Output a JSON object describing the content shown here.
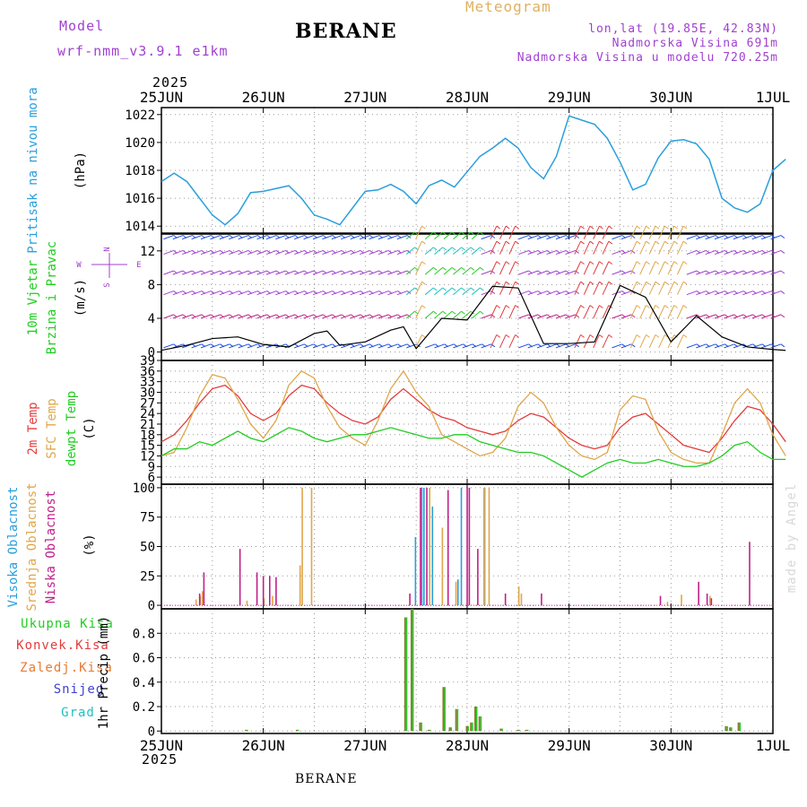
{
  "header": {
    "model_label": "Model",
    "model_name": "wrf-nmm_v3.9.1 e1km",
    "title": "BERANE",
    "meteogram_label": "Meteogram",
    "location": "lon,lat (19.85E, 42.83N)",
    "elevation": "Nadmorska Visina 691m",
    "model_elevation": "Nadmorska Visina u modelu 720.25m",
    "year_top": "2025"
  },
  "footer": {
    "year": "2025",
    "station": "BERANE",
    "credit": "made by Angel"
  },
  "colors": {
    "pressure": "#2a9fdc",
    "red": "#e33c3c",
    "orange": "#e0a64a",
    "green": "#22cc22",
    "purple": "#a040d0",
    "magenta": "#c0208a",
    "blue": "#2050e0",
    "cyan": "#20c0c0",
    "olive": "#8a7a30"
  },
  "xaxis": {
    "dates": [
      "25JUN",
      "26JUN",
      "27JUN",
      "28JUN",
      "29JUN",
      "30JUN",
      "1JUL"
    ]
  },
  "panel_labels": {
    "pressure": {
      "name": "Pritisak na nivou mora",
      "unit": "(hPa)"
    },
    "wind": {
      "name1": "10m Vjetar",
      "name2": "Brzina i Pravac",
      "unit": "(m/s)",
      "compass_top": "N",
      "compass_w": "W",
      "compass_e": "E",
      "compass_s": "S"
    },
    "temp": {
      "name1": "2m Temp",
      "name2": "SFC Temp",
      "name3": "dewpt Temp",
      "unit": "(C)"
    },
    "cloud": {
      "name1": "Visoka Oblacnost",
      "name2": "Srednja Oblacnost",
      "name3": "Niska Oblacnost",
      "unit": "(%)"
    },
    "precip": {
      "total": "Ukupna Kisa",
      "conv": "Konvek.Kisa",
      "frozen": "Zaledj.Kisa",
      "snow": "Snijeg",
      "hail": "Grad",
      "unit": "1hr Precip (mm)"
    }
  },
  "chart_data": [
    {
      "type": "line",
      "title": "Pritisak na nivou mora",
      "ylabel": "(hPa)",
      "x": [
        0,
        3,
        6,
        9,
        12,
        15,
        18,
        21,
        24,
        27,
        30,
        33,
        36,
        39,
        42,
        45,
        48,
        51,
        54,
        57,
        60,
        63,
        66,
        69,
        72,
        75,
        78,
        81,
        84,
        87,
        90,
        93,
        96,
        99,
        102,
        105,
        108,
        111,
        114,
        117,
        120,
        123,
        126,
        129,
        132,
        135,
        138,
        141,
        144,
        147
      ],
      "y": [
        1017.2,
        1017.8,
        1017.2,
        1016.0,
        1014.8,
        1014.1,
        1014.9,
        1016.4,
        1016.5,
        1016.7,
        1016.9,
        1016.0,
        1014.8,
        1014.5,
        1014.1,
        1015.3,
        1016.5,
        1016.6,
        1017.0,
        1016.5,
        1015.6,
        1016.9,
        1017.3,
        1016.8,
        1017.9,
        1019.0,
        1019.6,
        1020.3,
        1019.6,
        1018.2,
        1017.4,
        1019.0,
        1021.9,
        1021.6,
        1021.3,
        1020.3,
        1018.6,
        1016.6,
        1017.0,
        1018.9,
        1020.1,
        1020.2,
        1019.9,
        1018.8,
        1016.0,
        1015.3,
        1015.0,
        1015.6,
        1018.0,
        1018.8
      ],
      "yticks": [
        1014,
        1016,
        1018,
        1020,
        1022
      ],
      "ylim": [
        1013.5,
        1022.5
      ]
    },
    {
      "type": "line",
      "title": "10m Vjetar Brzina i Pravac",
      "ylabel": "(m/s)",
      "x": [
        0,
        6,
        12,
        18,
        24,
        30,
        36,
        39,
        42,
        48,
        54,
        57,
        60,
        66,
        72,
        78,
        84,
        90,
        96,
        102,
        108,
        114,
        120,
        126,
        132,
        138,
        144,
        147
      ],
      "y": [
        0.2,
        0.8,
        1.6,
        1.8,
        0.9,
        0.6,
        2.2,
        2.5,
        0.8,
        1.2,
        2.6,
        3.0,
        0.4,
        4.0,
        3.8,
        7.8,
        7.6,
        1.0,
        1.0,
        1.2,
        7.9,
        6.5,
        1.2,
        4.3,
        1.8,
        0.6,
        0.3,
        0.2
      ],
      "yticks": [
        0,
        4,
        8,
        12
      ],
      "ylim": [
        -1,
        14
      ]
    },
    {
      "type": "line",
      "title": "2m Temp / SFC Temp / dewpt Temp",
      "ylabel": "(C)",
      "x": [
        0,
        3,
        6,
        9,
        12,
        15,
        18,
        21,
        24,
        27,
        30,
        33,
        36,
        39,
        42,
        45,
        48,
        51,
        54,
        57,
        60,
        63,
        66,
        69,
        72,
        75,
        78,
        81,
        84,
        87,
        90,
        93,
        96,
        99,
        102,
        105,
        108,
        111,
        114,
        117,
        120,
        123,
        126,
        129,
        132,
        135,
        138,
        141,
        144,
        147
      ],
      "series": [
        {
          "name": "2m Temp",
          "values": [
            16,
            18,
            22,
            27,
            31,
            32,
            29,
            24,
            22,
            24,
            29,
            32,
            31,
            27,
            24,
            22,
            21,
            23,
            28,
            31,
            28,
            25,
            23,
            22,
            20,
            19,
            18,
            19,
            22,
            24,
            23,
            20,
            17,
            15,
            14,
            15,
            20,
            23,
            24,
            21,
            18,
            15,
            14,
            13,
            17,
            22,
            26,
            25,
            21,
            16
          ]
        },
        {
          "name": "SFC Temp",
          "values": [
            12,
            13,
            20,
            29,
            35,
            34,
            28,
            21,
            17,
            22,
            32,
            36,
            34,
            26,
            20,
            17,
            15,
            22,
            31,
            36,
            30,
            26,
            18,
            16,
            14,
            12,
            13,
            17,
            26,
            30,
            27,
            20,
            15,
            12,
            11,
            13,
            25,
            29,
            28,
            19,
            13,
            11,
            10,
            10,
            18,
            27,
            31,
            27,
            18,
            12
          ]
        },
        {
          "name": "dewpt Temp",
          "values": [
            12,
            14,
            14,
            16,
            15,
            17,
            19,
            17,
            16,
            18,
            20,
            19,
            17,
            16,
            17,
            18,
            18,
            19,
            20,
            19,
            18,
            17,
            17,
            18,
            18,
            16,
            15,
            14,
            13,
            13,
            12,
            10,
            8,
            6,
            8,
            10,
            11,
            10,
            10,
            11,
            10,
            9,
            9,
            10,
            12,
            15,
            16,
            13,
            11,
            11
          ]
        }
      ],
      "yticks": [
        6,
        9,
        12,
        15,
        18,
        21,
        24,
        27,
        30,
        33,
        36,
        39
      ],
      "ylim": [
        4,
        39
      ]
    },
    {
      "type": "bar",
      "title": "Visoka / Srednja / Niska Oblacnost",
      "ylabel": "(%)",
      "series": [
        {
          "name": "Visoka Oblacnost",
          "x": [
            60,
            61.5,
            62,
            64,
            70,
            70.8,
            76.2
          ],
          "values": [
            58,
            100,
            100,
            84,
            22,
            100,
            100
          ]
        },
        {
          "name": "Srednja Oblacnost",
          "x": [
            8,
            9,
            9.5,
            20,
            24,
            26,
            32.5,
            33,
            35.2,
            63,
            66,
            69.2,
            76,
            77,
            84,
            84.6,
            119,
            122.3,
            129
          ],
          "values": [
            5,
            8,
            12,
            4,
            6,
            8,
            34,
            100,
            100,
            100,
            66,
            20,
            100,
            100,
            16,
            10,
            3,
            9,
            8
          ]
        },
        {
          "name": "Niska Oblacnost",
          "x": [
            8.5,
            9.5,
            18,
            22,
            23.5,
            25,
            26.5,
            58,
            60.5,
            62,
            67,
            71.5,
            72,
            74,
            80.5,
            89,
            117,
            126,
            128,
            129,
            138
          ],
          "values": [
            10,
            28,
            48,
            28,
            25,
            25,
            24,
            10,
            100,
            100,
            98,
            100,
            100,
            48,
            10,
            10,
            8,
            20,
            10,
            6,
            54
          ]
        }
      ],
      "yticks": [
        0,
        25,
        50,
        75,
        100
      ],
      "ylim": [
        -3,
        103
      ]
    },
    {
      "type": "bar",
      "title": "1hr Precip",
      "ylabel": "1hr Precip (mm)",
      "series": [
        {
          "name": "Ukupna Kisa",
          "x": [
            20,
            32,
            57.5,
            59,
            61,
            63,
            66.5,
            68,
            69.5,
            72,
            73,
            74,
            75,
            80,
            84,
            86,
            133,
            134,
            136
          ],
          "values": [
            0.01,
            0.01,
            0.93,
            1.0,
            0.07,
            0.01,
            0.36,
            0.03,
            0.18,
            0.04,
            0.07,
            0.2,
            0.12,
            0.02,
            0.01,
            0.01,
            0.04,
            0.03,
            0.07
          ]
        }
      ],
      "yticks": [
        0,
        0.2,
        0.4,
        0.6,
        0.8
      ],
      "ylim": [
        -0.02,
        1.0
      ]
    }
  ]
}
